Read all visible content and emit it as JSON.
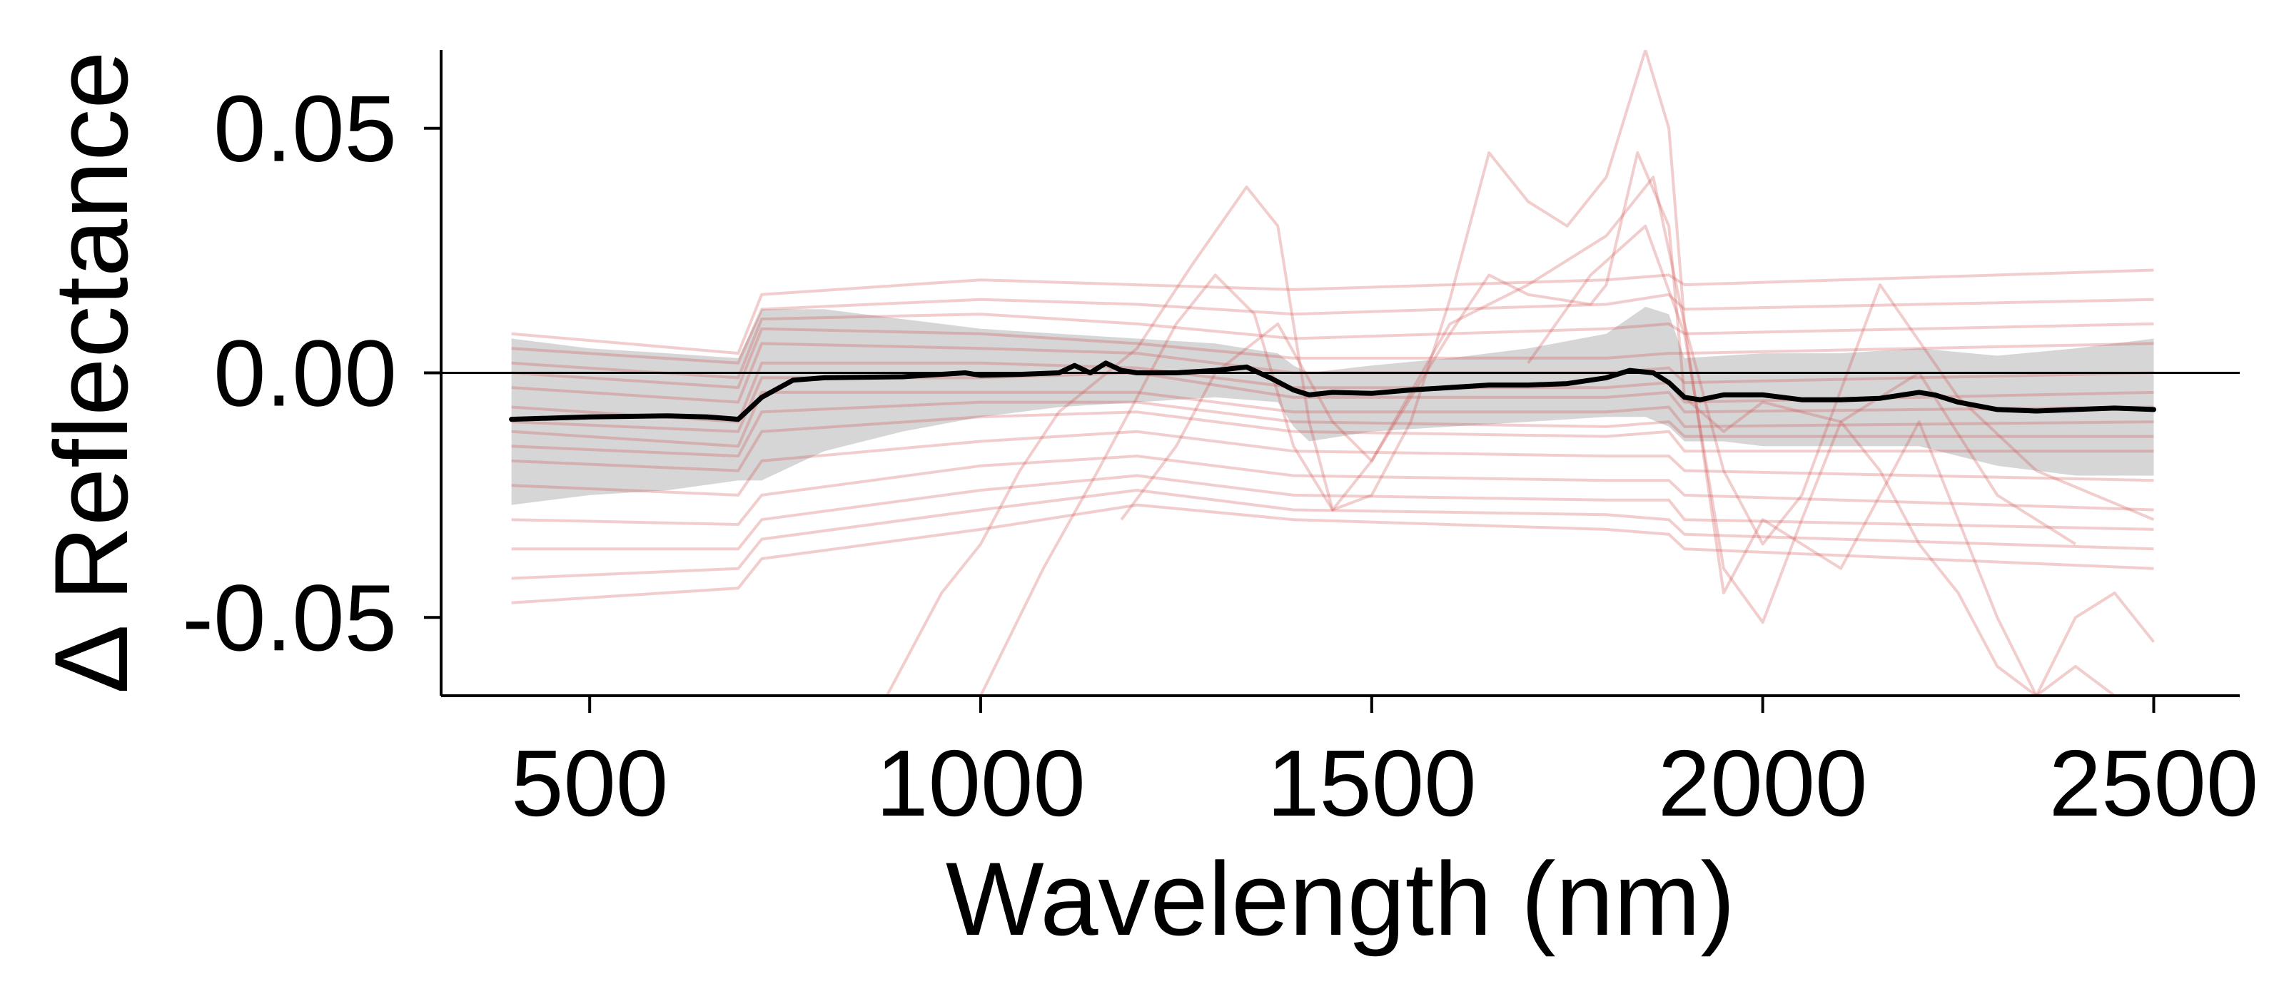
{
  "chart_data": {
    "type": "line",
    "title": "",
    "xlabel": "Wavelength (nm)",
    "ylabel": "Δ Reflectance",
    "xlim": [
      310,
      2610
    ],
    "ylim": [
      -0.066,
      0.066
    ],
    "x_ticks": [
      {
        "value": 500,
        "label": "500"
      },
      {
        "value": 1000,
        "label": "1000"
      },
      {
        "value": 1500,
        "label": "1500"
      },
      {
        "value": 2000,
        "label": "2000"
      },
      {
        "value": 2500,
        "label": "2500"
      }
    ],
    "y_ticks": [
      {
        "value": 0.05,
        "label": "0.05"
      },
      {
        "value": 0.0,
        "label": "0.00"
      },
      {
        "value": -0.05,
        "label": "-0.05"
      }
    ],
    "zero_reference_line": 0.0,
    "grid": false,
    "legend": "none",
    "colors": {
      "individual_lines": "#d24a4a",
      "mean_line": "#000000",
      "band_fill": "#bdbdbd"
    },
    "mean_series": {
      "x": [
        400,
        500,
        600,
        650,
        690,
        720,
        760,
        800,
        900,
        980,
        1000,
        1050,
        1100,
        1120,
        1140,
        1160,
        1180,
        1200,
        1250,
        1300,
        1340,
        1370,
        1400,
        1420,
        1450,
        1500,
        1550,
        1600,
        1650,
        1700,
        1750,
        1800,
        1830,
        1860,
        1880,
        1900,
        1920,
        1950,
        2000,
        2050,
        2100,
        2150,
        2200,
        2220,
        2250,
        2300,
        2350,
        2400,
        2450,
        2500
      ],
      "y": [
        -0.0095,
        -0.009,
        -0.0088,
        -0.009,
        -0.0095,
        -0.005,
        -0.0015,
        -0.001,
        -0.0008,
        0.0,
        -0.0005,
        -0.0003,
        0.0,
        0.0015,
        0.0,
        0.002,
        0.0005,
        0.0,
        0.0,
        0.0005,
        0.0012,
        -0.001,
        -0.0035,
        -0.0045,
        -0.004,
        -0.0042,
        -0.0035,
        -0.003,
        -0.0025,
        -0.0025,
        -0.0022,
        -0.001,
        0.0005,
        0.0,
        -0.002,
        -0.005,
        -0.0055,
        -0.0045,
        -0.0045,
        -0.0055,
        -0.0055,
        -0.0052,
        -0.004,
        -0.0045,
        -0.006,
        -0.0075,
        -0.0078,
        -0.0075,
        -0.0072,
        -0.0075
      ]
    },
    "band_series": {
      "x": [
        400,
        500,
        600,
        690,
        720,
        800,
        900,
        1000,
        1100,
        1200,
        1300,
        1380,
        1400,
        1420,
        1500,
        1600,
        1700,
        1800,
        1850,
        1880,
        1900,
        1950,
        2000,
        2100,
        2200,
        2300,
        2400,
        2500
      ],
      "upper": [
        0.007,
        0.005,
        0.004,
        0.003,
        0.013,
        0.013,
        0.011,
        0.009,
        0.008,
        0.007,
        0.006,
        0.004,
        0.0015,
        0.0,
        0.0015,
        0.003,
        0.005,
        0.008,
        0.0135,
        0.012,
        0.003,
        0.0035,
        0.004,
        0.004,
        0.005,
        0.0035,
        0.005,
        0.007
      ],
      "lower": [
        -0.027,
        -0.025,
        -0.024,
        -0.022,
        -0.022,
        -0.016,
        -0.012,
        -0.009,
        -0.007,
        -0.006,
        -0.005,
        -0.006,
        -0.011,
        -0.014,
        -0.012,
        -0.011,
        -0.01,
        -0.009,
        -0.009,
        -0.011,
        -0.014,
        -0.014,
        -0.015,
        -0.015,
        -0.015,
        -0.019,
        -0.021,
        -0.021
      ]
    },
    "individual_series": [
      {
        "x": [
          400,
          690,
          720,
          1000,
          1200,
          1400,
          1800,
          1880,
          1900,
          2500
        ],
        "y": [
          0.0,
          -0.003,
          0.009,
          0.008,
          0.006,
          0.003,
          0.003,
          0.004,
          0.004,
          0.006
        ]
      },
      {
        "x": [
          400,
          690,
          720,
          1000,
          1200,
          1400,
          1800,
          1880,
          1900,
          2500
        ],
        "y": [
          0.005,
          0.002,
          0.013,
          0.015,
          0.014,
          0.012,
          0.014,
          0.016,
          0.013,
          0.015
        ]
      },
      {
        "x": [
          400,
          690,
          720,
          1000,
          1200,
          1400,
          1800,
          1880,
          1900,
          2500
        ],
        "y": [
          0.008,
          0.004,
          0.016,
          0.019,
          0.018,
          0.017,
          0.019,
          0.02,
          0.018,
          0.021
        ]
      },
      {
        "x": [
          400,
          690,
          720,
          1000,
          1200,
          1400,
          1800,
          1880,
          1900,
          2500
        ],
        "y": [
          -0.003,
          -0.006,
          0.006,
          0.005,
          0.004,
          0.0,
          0.0,
          0.001,
          -0.002,
          0.0
        ]
      },
      {
        "x": [
          400,
          690,
          720,
          1000,
          1200,
          1400,
          1800,
          1880,
          1900,
          2500
        ],
        "y": [
          -0.007,
          -0.01,
          0.002,
          0.002,
          0.001,
          -0.003,
          -0.003,
          -0.002,
          -0.006,
          -0.004
        ]
      },
      {
        "x": [
          400,
          690,
          720,
          1000,
          1200,
          1400,
          1800,
          1880,
          1900,
          2500
        ],
        "y": [
          -0.012,
          -0.015,
          -0.004,
          -0.004,
          -0.004,
          -0.008,
          -0.008,
          -0.007,
          -0.011,
          -0.01
        ]
      },
      {
        "x": [
          400,
          690,
          720,
          1000,
          1200,
          1400,
          1800,
          1880,
          1900,
          2500
        ],
        "y": [
          -0.018,
          -0.02,
          -0.012,
          -0.009,
          -0.008,
          -0.012,
          -0.013,
          -0.012,
          -0.016,
          -0.016
        ]
      },
      {
        "x": [
          400,
          690,
          720,
          1000,
          1200,
          1400,
          1800,
          1880,
          1900,
          2500
        ],
        "y": [
          -0.023,
          -0.025,
          -0.018,
          -0.014,
          -0.012,
          -0.016,
          -0.017,
          -0.017,
          -0.02,
          -0.022
        ]
      },
      {
        "x": [
          400,
          690,
          720,
          1000,
          1200,
          1400,
          1800,
          1880,
          1900,
          2500
        ],
        "y": [
          -0.03,
          -0.031,
          -0.025,
          -0.019,
          -0.017,
          -0.021,
          -0.022,
          -0.022,
          -0.025,
          -0.028
        ]
      },
      {
        "x": [
          400,
          690,
          720,
          1000,
          1200,
          1400,
          1800,
          1880,
          1900,
          2500
        ],
        "y": [
          -0.036,
          -0.036,
          -0.03,
          -0.024,
          -0.021,
          -0.025,
          -0.026,
          -0.026,
          -0.03,
          -0.032
        ]
      },
      {
        "x": [
          400,
          690,
          720,
          1000,
          1200,
          1400,
          1800,
          1880,
          1900,
          2500
        ],
        "y": [
          -0.042,
          -0.04,
          -0.034,
          -0.028,
          -0.024,
          -0.028,
          -0.029,
          -0.03,
          -0.033,
          -0.036
        ]
      },
      {
        "x": [
          400,
          690,
          720,
          1000,
          1200,
          1400,
          1800,
          1880,
          1900,
          2500
        ],
        "y": [
          -0.047,
          -0.044,
          -0.038,
          -0.032,
          -0.027,
          -0.03,
          -0.032,
          -0.033,
          -0.036,
          -0.04
        ]
      },
      {
        "x": [
          400,
          690,
          720,
          1000,
          1200,
          1400,
          1800,
          1880,
          1900,
          2500
        ],
        "y": [
          0.002,
          -0.001,
          0.011,
          0.012,
          0.01,
          0.007,
          0.009,
          0.01,
          0.008,
          0.01
        ]
      },
      {
        "x": [
          400,
          690,
          720,
          1000,
          1200,
          1400,
          1800,
          1880,
          1900,
          2500
        ],
        "y": [
          -0.01,
          -0.012,
          -0.001,
          -0.001,
          0.0,
          -0.005,
          -0.005,
          -0.004,
          -0.008,
          -0.007
        ]
      },
      {
        "x": [
          400,
          690,
          720,
          1000,
          1200,
          1400,
          1800,
          1880,
          1900,
          2500
        ],
        "y": [
          -0.015,
          -0.017,
          -0.008,
          -0.006,
          -0.006,
          -0.01,
          -0.011,
          -0.01,
          -0.013,
          -0.013
        ]
      },
      {
        "x": [
          880,
          950,
          1000,
          1050,
          1100,
          1200,
          1270,
          1340,
          1380,
          1420,
          1450,
          1500,
          1600,
          1650,
          1700,
          1780,
          1800,
          1840,
          1880,
          1900,
          1950,
          2000,
          2100,
          2200,
          2300,
          2400
        ],
        "y": [
          -0.066,
          -0.045,
          -0.035,
          -0.02,
          -0.008,
          0.005,
          0.022,
          0.038,
          0.03,
          -0.01,
          -0.028,
          -0.018,
          0.008,
          0.02,
          0.016,
          0.014,
          0.018,
          0.045,
          0.03,
          -0.005,
          -0.012,
          -0.006,
          -0.01,
          0.0,
          -0.025,
          -0.035
        ]
      },
      {
        "x": [
          1000,
          1080,
          1150,
          1200,
          1250,
          1300,
          1350,
          1400,
          1450,
          1500,
          1550,
          1600,
          1650,
          1700,
          1750,
          1800,
          1850,
          1880,
          1900,
          1950,
          2000,
          2100,
          2200,
          2300,
          2350,
          2400,
          2450
        ],
        "y": [
          -0.066,
          -0.04,
          -0.02,
          -0.005,
          0.01,
          0.02,
          0.012,
          -0.015,
          -0.028,
          -0.025,
          -0.01,
          0.015,
          0.045,
          0.035,
          0.03,
          0.04,
          0.066,
          0.05,
          0.01,
          -0.045,
          -0.03,
          -0.04,
          -0.01,
          -0.05,
          -0.066,
          -0.06,
          -0.066
        ]
      },
      {
        "x": [
          1180,
          1250,
          1300,
          1380,
          1450,
          1500,
          1600,
          1700,
          1800,
          1860,
          1900,
          1950,
          2000,
          2050,
          2150,
          2250,
          2350,
          2500
        ],
        "y": [
          -0.03,
          -0.015,
          0.0,
          0.01,
          -0.01,
          -0.018,
          0.01,
          0.018,
          0.028,
          0.04,
          0.01,
          -0.02,
          -0.035,
          -0.025,
          0.018,
          -0.005,
          -0.02,
          -0.03
        ]
      },
      {
        "x": [
          1700,
          1780,
          1850,
          1900,
          1950,
          2000,
          2050,
          2100,
          2150,
          2200,
          2250,
          2300,
          2350,
          2400,
          2450,
          2500
        ],
        "y": [
          0.002,
          0.02,
          0.03,
          0.008,
          -0.04,
          -0.051,
          -0.03,
          -0.01,
          -0.02,
          -0.035,
          -0.045,
          -0.06,
          -0.066,
          -0.05,
          -0.045,
          -0.055
        ]
      }
    ]
  }
}
